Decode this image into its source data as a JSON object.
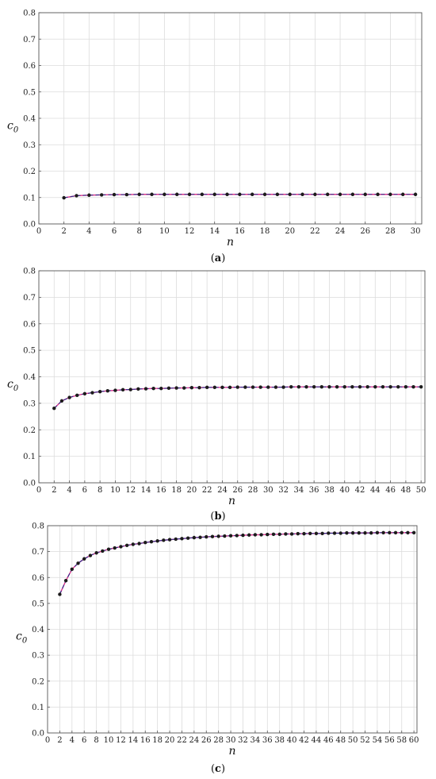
{
  "charts": [
    {
      "caption_open": "(",
      "caption_letter": "a",
      "caption_close": ")"
    },
    {
      "caption_open": "(",
      "caption_letter": "b",
      "caption_close": ")"
    },
    {
      "caption_open": "(",
      "caption_letter": "c",
      "caption_close": ")"
    }
  ],
  "chart_data": [
    {
      "type": "line",
      "xlabel": "n",
      "ylabel": "c0",
      "xlim": [
        0,
        30.5
      ],
      "ylim": [
        0,
        0.8
      ],
      "x_ticks": [
        0,
        2,
        4,
        6,
        8,
        10,
        12,
        14,
        16,
        18,
        20,
        22,
        24,
        26,
        28,
        30
      ],
      "y_ticks": [
        0.0,
        0.1,
        0.2,
        0.3,
        0.4,
        0.5,
        0.6,
        0.7,
        0.8
      ],
      "grid": true,
      "series": [
        {
          "x": [
            2,
            3,
            4,
            5,
            6,
            7,
            8,
            9,
            10,
            11,
            12,
            13,
            14,
            15,
            16,
            17,
            18,
            19,
            20,
            21,
            22,
            23,
            24,
            25,
            26,
            27,
            28,
            29,
            30
          ],
          "y": [
            0.099,
            0.107,
            0.109,
            0.11,
            0.111,
            0.111,
            0.112,
            0.112,
            0.112,
            0.112,
            0.112,
            0.112,
            0.112,
            0.112,
            0.112,
            0.112,
            0.112,
            0.112,
            0.112,
            0.112,
            0.112,
            0.112,
            0.112,
            0.112,
            0.112,
            0.112,
            0.112,
            0.112,
            0.112
          ]
        }
      ]
    },
    {
      "type": "line",
      "xlabel": "n",
      "ylabel": "c0",
      "xlim": [
        0,
        50.5
      ],
      "ylim": [
        0,
        0.8
      ],
      "x_ticks": [
        0,
        2,
        4,
        6,
        8,
        10,
        12,
        14,
        16,
        18,
        20,
        22,
        24,
        26,
        28,
        30,
        32,
        34,
        36,
        38,
        40,
        42,
        44,
        46,
        48,
        50
      ],
      "y_ticks": [
        0.0,
        0.1,
        0.2,
        0.3,
        0.4,
        0.5,
        0.6,
        0.7,
        0.8
      ],
      "grid": true,
      "series": [
        {
          "x": [
            2,
            3,
            4,
            5,
            6,
            7,
            8,
            9,
            10,
            11,
            12,
            13,
            14,
            15,
            16,
            17,
            18,
            19,
            20,
            21,
            22,
            23,
            24,
            25,
            26,
            27,
            28,
            29,
            30,
            31,
            32,
            33,
            34,
            35,
            36,
            37,
            38,
            39,
            40,
            41,
            42,
            43,
            44,
            45,
            46,
            47,
            48,
            49,
            50
          ],
          "y": [
            0.281,
            0.309,
            0.322,
            0.33,
            0.336,
            0.34,
            0.344,
            0.347,
            0.349,
            0.351,
            0.352,
            0.354,
            0.355,
            0.356,
            0.356,
            0.357,
            0.358,
            0.358,
            0.359,
            0.359,
            0.36,
            0.36,
            0.36,
            0.36,
            0.361,
            0.361,
            0.361,
            0.361,
            0.361,
            0.361,
            0.361,
            0.362,
            0.362,
            0.362,
            0.362,
            0.362,
            0.362,
            0.362,
            0.362,
            0.362,
            0.362,
            0.362,
            0.362,
            0.362,
            0.362,
            0.362,
            0.362,
            0.362,
            0.362
          ]
        }
      ]
    },
    {
      "type": "line",
      "xlabel": "n",
      "ylabel": "c0",
      "xlim": [
        0,
        60.5
      ],
      "ylim": [
        0,
        0.8
      ],
      "x_ticks": [
        0,
        2,
        4,
        6,
        8,
        10,
        12,
        14,
        16,
        18,
        20,
        22,
        24,
        26,
        28,
        30,
        32,
        34,
        36,
        38,
        40,
        42,
        44,
        46,
        48,
        50,
        52,
        54,
        56,
        58,
        60
      ],
      "y_ticks": [
        0.0,
        0.1,
        0.2,
        0.3,
        0.4,
        0.5,
        0.6,
        0.7,
        0.8
      ],
      "grid": true,
      "series": [
        {
          "x": [
            2,
            3,
            4,
            5,
            6,
            7,
            8,
            9,
            10,
            11,
            12,
            13,
            14,
            15,
            16,
            17,
            18,
            19,
            20,
            21,
            22,
            23,
            24,
            25,
            26,
            27,
            28,
            29,
            30,
            31,
            32,
            33,
            34,
            35,
            36,
            37,
            38,
            39,
            40,
            41,
            42,
            43,
            44,
            45,
            46,
            47,
            48,
            49,
            50,
            51,
            52,
            53,
            54,
            55,
            56,
            57,
            58,
            59,
            60
          ],
          "y": [
            0.535,
            0.588,
            0.632,
            0.655,
            0.672,
            0.685,
            0.695,
            0.702,
            0.709,
            0.714,
            0.719,
            0.724,
            0.728,
            0.731,
            0.735,
            0.738,
            0.741,
            0.744,
            0.746,
            0.748,
            0.75,
            0.752,
            0.754,
            0.755,
            0.757,
            0.758,
            0.759,
            0.76,
            0.761,
            0.762,
            0.763,
            0.764,
            0.765,
            0.765,
            0.766,
            0.767,
            0.767,
            0.768,
            0.768,
            0.769,
            0.769,
            0.77,
            0.77,
            0.77,
            0.771,
            0.771,
            0.771,
            0.772,
            0.772,
            0.772,
            0.772,
            0.772,
            0.773,
            0.773,
            0.773,
            0.773,
            0.773,
            0.773,
            0.773
          ]
        }
      ]
    }
  ]
}
